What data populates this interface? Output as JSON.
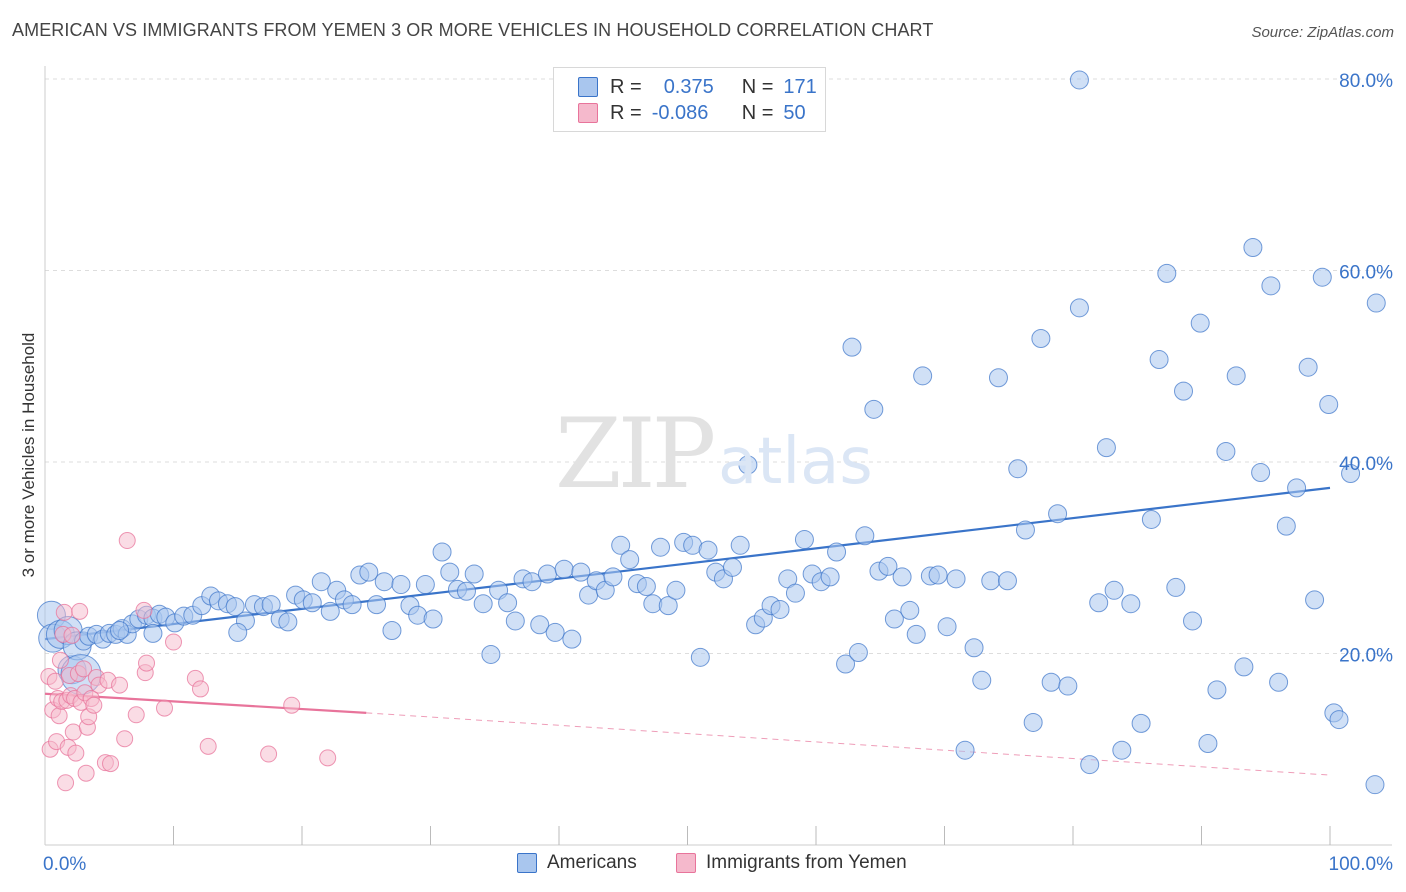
{
  "title": "AMERICAN VS IMMIGRANTS FROM YEMEN 3 OR MORE VEHICLES IN HOUSEHOLD CORRELATION CHART",
  "source": "Source: ZipAtlas.com",
  "watermark": {
    "zip": "ZIP",
    "atlas": "atlas"
  },
  "legend": {
    "rows": [
      {
        "r_label": "R =",
        "r_value": "0.375",
        "n_label": "N =",
        "n_value": "171"
      },
      {
        "r_label": "R =",
        "r_value": "-0.086",
        "n_label": "N =",
        "n_value": "50"
      }
    ]
  },
  "bottom_legend": {
    "americans": "Americans",
    "yemen": "Immigrants from Yemen"
  },
  "colors": {
    "blue": "#3a74c9",
    "blue_fill": "#a9c6ee",
    "pink": "#e8749b",
    "pink_fill": "#f5b9cc"
  },
  "chart_data": {
    "type": "scatter",
    "title": "AMERICAN VS IMMIGRANTS FROM YEMEN 3 OR MORE VEHICLES IN HOUSEHOLD CORRELATION CHART",
    "xlabel": "",
    "ylabel": "3 or more Vehicles in Household",
    "xlim": [
      0,
      100
    ],
    "ylim": [
      0,
      80
    ],
    "x_tick_labels": [
      "0.0%",
      "100.0%"
    ],
    "y_ticks": [
      20,
      40,
      60,
      80
    ],
    "y_tick_labels": [
      "20.0%",
      "40.0%",
      "60.0%",
      "80.0%"
    ],
    "grid": true,
    "series": [
      {
        "name": "Americans",
        "trend": {
          "x": [
            0,
            100
          ],
          "y": [
            21.5,
            37.3
          ]
        },
        "points": [
          [
            0.5,
            24.0
          ],
          [
            0.6,
            21.6
          ],
          [
            1.2,
            22.0
          ],
          [
            1.8,
            22.4
          ],
          [
            2.1,
            18.3
          ],
          [
            2.5,
            20.8
          ],
          [
            3.0,
            21.3
          ],
          [
            3.4,
            21.8
          ],
          [
            4.0,
            22.0
          ],
          [
            4.5,
            21.5
          ],
          [
            5.0,
            22.1
          ],
          [
            5.5,
            22.0
          ],
          [
            6.0,
            22.6
          ],
          [
            6.4,
            22.0
          ],
          [
            6.8,
            23.1
          ],
          [
            7.3,
            23.6
          ],
          [
            7.9,
            24.0
          ],
          [
            8.4,
            23.7
          ],
          [
            8.9,
            24.1
          ],
          [
            9.4,
            23.8
          ],
          [
            10.1,
            23.2
          ],
          [
            10.8,
            23.9
          ],
          [
            11.5,
            24.0
          ],
          [
            12.2,
            25.0
          ],
          [
            12.9,
            26.0
          ],
          [
            13.5,
            25.5
          ],
          [
            14.2,
            25.2
          ],
          [
            14.8,
            24.9
          ],
          [
            15.6,
            23.4
          ],
          [
            16.3,
            25.1
          ],
          [
            17.0,
            24.9
          ],
          [
            17.6,
            25.1
          ],
          [
            18.3,
            23.6
          ],
          [
            18.9,
            23.3
          ],
          [
            19.5,
            26.1
          ],
          [
            20.1,
            25.6
          ],
          [
            20.8,
            25.3
          ],
          [
            21.5,
            27.5
          ],
          [
            22.2,
            24.4
          ],
          [
            22.7,
            26.6
          ],
          [
            23.3,
            25.6
          ],
          [
            23.9,
            25.1
          ],
          [
            24.5,
            28.2
          ],
          [
            25.2,
            28.5
          ],
          [
            25.8,
            25.1
          ],
          [
            26.4,
            27.5
          ],
          [
            27.0,
            22.4
          ],
          [
            27.7,
            27.2
          ],
          [
            28.4,
            25.0
          ],
          [
            29.0,
            24.0
          ],
          [
            29.6,
            27.2
          ],
          [
            30.2,
            23.6
          ],
          [
            30.9,
            30.6
          ],
          [
            31.5,
            28.5
          ],
          [
            32.1,
            26.7
          ],
          [
            32.8,
            26.5
          ],
          [
            33.4,
            28.3
          ],
          [
            34.1,
            25.2
          ],
          [
            34.7,
            19.9
          ],
          [
            35.3,
            26.6
          ],
          [
            36.0,
            25.3
          ],
          [
            36.6,
            23.4
          ],
          [
            37.2,
            27.8
          ],
          [
            37.9,
            27.5
          ],
          [
            38.5,
            23.0
          ],
          [
            39.1,
            28.3
          ],
          [
            39.7,
            22.2
          ],
          [
            40.4,
            28.8
          ],
          [
            41.0,
            21.5
          ],
          [
            41.7,
            28.5
          ],
          [
            42.3,
            26.1
          ],
          [
            42.9,
            27.6
          ],
          [
            43.6,
            26.6
          ],
          [
            44.2,
            28.0
          ],
          [
            44.8,
            31.3
          ],
          [
            45.5,
            29.8
          ],
          [
            46.1,
            27.3
          ],
          [
            46.8,
            27.0
          ],
          [
            47.3,
            25.2
          ],
          [
            47.9,
            31.1
          ],
          [
            48.5,
            25.0
          ],
          [
            49.1,
            26.6
          ],
          [
            49.7,
            31.6
          ],
          [
            50.4,
            31.3
          ],
          [
            51.0,
            19.6
          ],
          [
            51.6,
            30.8
          ],
          [
            52.2,
            28.5
          ],
          [
            52.8,
            27.8
          ],
          [
            53.5,
            29.0
          ],
          [
            54.1,
            31.3
          ],
          [
            54.7,
            39.7
          ],
          [
            55.3,
            23.0
          ],
          [
            55.9,
            23.7
          ],
          [
            56.5,
            25.0
          ],
          [
            57.2,
            24.6
          ],
          [
            57.8,
            27.8
          ],
          [
            58.4,
            26.3
          ],
          [
            59.1,
            31.9
          ],
          [
            59.7,
            28.3
          ],
          [
            60.4,
            27.5
          ],
          [
            61.1,
            28.0
          ],
          [
            61.6,
            30.6
          ],
          [
            62.3,
            18.9
          ],
          [
            62.8,
            52.0
          ],
          [
            63.3,
            20.1
          ],
          [
            63.8,
            32.3
          ],
          [
            64.5,
            45.5
          ],
          [
            64.9,
            28.6
          ],
          [
            65.6,
            29.1
          ],
          [
            66.1,
            23.6
          ],
          [
            66.7,
            28.0
          ],
          [
            67.3,
            24.5
          ],
          [
            67.8,
            22.0
          ],
          [
            68.3,
            49.0
          ],
          [
            68.9,
            28.1
          ],
          [
            69.5,
            28.2
          ],
          [
            70.2,
            22.8
          ],
          [
            70.9,
            27.8
          ],
          [
            71.6,
            9.9
          ],
          [
            72.3,
            20.6
          ],
          [
            72.9,
            17.2
          ],
          [
            73.6,
            27.6
          ],
          [
            74.2,
            48.8
          ],
          [
            74.9,
            27.6
          ],
          [
            75.7,
            39.3
          ],
          [
            76.3,
            32.9
          ],
          [
            76.9,
            12.8
          ],
          [
            77.5,
            52.9
          ],
          [
            78.3,
            17.0
          ],
          [
            78.8,
            34.6
          ],
          [
            79.6,
            16.6
          ],
          [
            80.5,
            56.1
          ],
          [
            81.3,
            8.4
          ],
          [
            82.0,
            25.3
          ],
          [
            82.6,
            41.5
          ],
          [
            83.2,
            26.6
          ],
          [
            83.8,
            9.9
          ],
          [
            84.5,
            25.2
          ],
          [
            85.3,
            12.7
          ],
          [
            86.1,
            34.0
          ],
          [
            86.7,
            50.7
          ],
          [
            87.3,
            59.7
          ],
          [
            88.0,
            26.9
          ],
          [
            88.6,
            47.4
          ],
          [
            89.3,
            23.4
          ],
          [
            89.9,
            54.5
          ],
          [
            90.5,
            10.6
          ],
          [
            91.2,
            16.2
          ],
          [
            91.9,
            41.1
          ],
          [
            92.7,
            49.0
          ],
          [
            93.3,
            18.6
          ],
          [
            94.0,
            62.4
          ],
          [
            94.6,
            38.9
          ],
          [
            95.4,
            58.4
          ],
          [
            96.0,
            17.0
          ],
          [
            96.6,
            33.3
          ],
          [
            97.4,
            37.3
          ],
          [
            98.3,
            49.9
          ],
          [
            98.8,
            25.6
          ],
          [
            99.4,
            59.3
          ],
          [
            99.9,
            46.0
          ],
          [
            100.3,
            13.8
          ],
          [
            100.7,
            13.1
          ],
          [
            101.6,
            38.8
          ],
          [
            103.5,
            6.3
          ],
          [
            103.6,
            56.6
          ],
          [
            80.5,
            79.9
          ],
          [
            15.0,
            22.2
          ],
          [
            5.8,
            22.4
          ],
          [
            8.4,
            22.1
          ],
          [
            2.8,
            17.8
          ]
        ]
      },
      {
        "name": "Immigrants from Yemen",
        "trend": {
          "x": [
            0,
            25
          ],
          "y": [
            15.8,
            13.8
          ]
        },
        "trend_dashed": {
          "x": [
            25,
            100
          ],
          "y": [
            13.8,
            7.3
          ]
        },
        "points": [
          [
            0.3,
            17.6
          ],
          [
            0.4,
            10.0
          ],
          [
            0.6,
            14.1
          ],
          [
            0.8,
            17.1
          ],
          [
            0.9,
            10.8
          ],
          [
            1.0,
            15.3
          ],
          [
            1.1,
            13.5
          ],
          [
            1.2,
            19.3
          ],
          [
            1.3,
            15.0
          ],
          [
            1.4,
            22.0
          ],
          [
            1.5,
            24.3
          ],
          [
            1.6,
            6.5
          ],
          [
            1.7,
            15.1
          ],
          [
            1.8,
            10.2
          ],
          [
            1.9,
            17.7
          ],
          [
            2.0,
            15.6
          ],
          [
            2.1,
            21.9
          ],
          [
            2.2,
            11.8
          ],
          [
            2.3,
            15.3
          ],
          [
            2.4,
            9.6
          ],
          [
            2.6,
            17.9
          ],
          [
            2.7,
            24.4
          ],
          [
            2.8,
            14.9
          ],
          [
            3.0,
            18.4
          ],
          [
            3.1,
            15.9
          ],
          [
            3.2,
            7.5
          ],
          [
            3.3,
            12.3
          ],
          [
            3.4,
            13.4
          ],
          [
            3.6,
            15.3
          ],
          [
            3.8,
            14.6
          ],
          [
            4.0,
            17.5
          ],
          [
            4.2,
            16.7
          ],
          [
            4.7,
            8.6
          ],
          [
            4.9,
            17.2
          ],
          [
            5.1,
            8.5
          ],
          [
            5.8,
            16.7
          ],
          [
            6.2,
            11.1
          ],
          [
            6.4,
            31.8
          ],
          [
            7.1,
            13.6
          ],
          [
            7.7,
            24.5
          ],
          [
            7.8,
            18.0
          ],
          [
            7.9,
            19.0
          ],
          [
            9.3,
            14.3
          ],
          [
            10.0,
            21.2
          ],
          [
            11.7,
            17.4
          ],
          [
            12.1,
            16.3
          ],
          [
            12.7,
            10.3
          ],
          [
            17.4,
            9.5
          ],
          [
            19.2,
            14.6
          ],
          [
            22.0,
            9.1
          ]
        ]
      }
    ]
  }
}
